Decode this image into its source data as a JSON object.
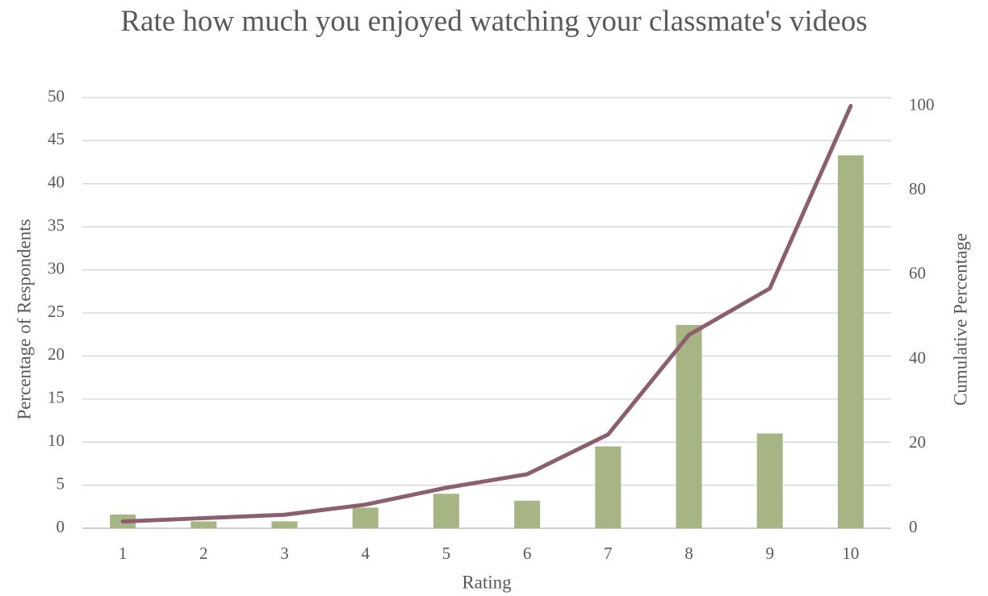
{
  "chart_data": {
    "type": "combo",
    "title": "Rate how much you enjoyed watching your classmate's videos",
    "x_label": "Rating",
    "y_label": "Percentage of Respondents",
    "y2_label": "Cumulative Percentage",
    "categories": [
      "1",
      "2",
      "3",
      "4",
      "5",
      "6",
      "7",
      "8",
      "9",
      "10"
    ],
    "series": [
      {
        "name": "Percentage of Respondents",
        "type": "bar",
        "color": "#a7b585",
        "values": [
          1.6,
          0.8,
          0.8,
          2.4,
          4.0,
          3.2,
          9.5,
          23.6,
          11.0,
          43.3
        ]
      },
      {
        "name": "Cumulative Percentage",
        "type": "line",
        "axis": "y2",
        "color": "#8b5f6e",
        "values": [
          1.6,
          2.4,
          3.2,
          5.6,
          9.6,
          12.8,
          22.2,
          45.8,
          56.8,
          100
        ]
      }
    ],
    "ylim": [
      0,
      50
    ],
    "yticks": [
      0,
      5,
      10,
      15,
      20,
      25,
      30,
      35,
      40,
      45,
      50
    ],
    "y2lim": [
      0,
      102
    ],
    "y2ticks": [
      0,
      20,
      40,
      60,
      80,
      100
    ],
    "grid": true
  }
}
